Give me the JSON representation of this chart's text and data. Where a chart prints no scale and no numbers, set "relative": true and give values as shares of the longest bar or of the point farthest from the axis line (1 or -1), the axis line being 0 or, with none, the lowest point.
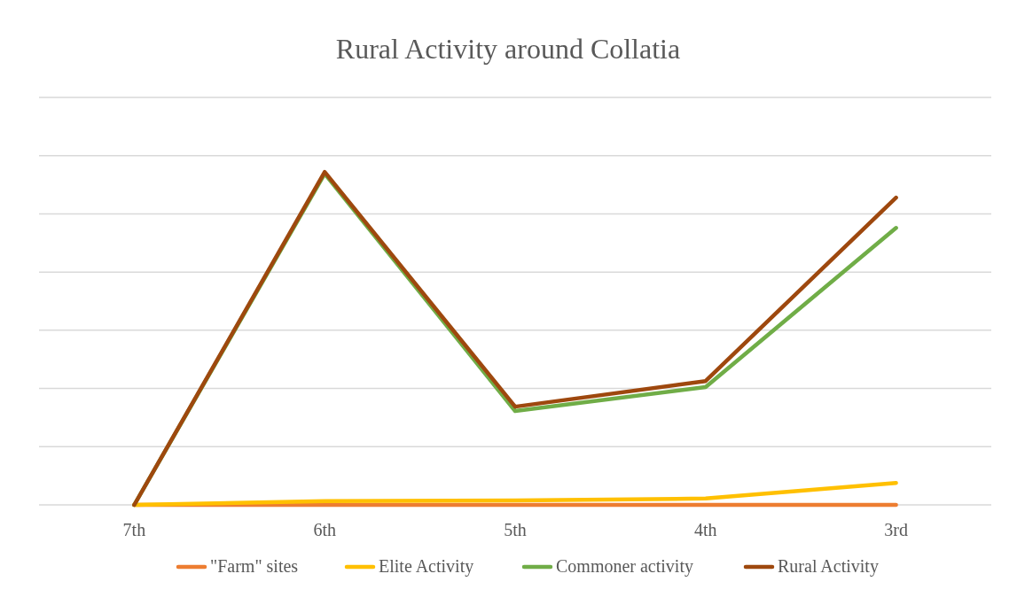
{
  "chart_data": {
    "type": "line",
    "title": "Rural Activity around Collatia",
    "categories": [
      "7th",
      "6th",
      "5th",
      "4th",
      "3rd"
    ],
    "relative": true,
    "grid": "y",
    "legend": "bottom",
    "marker": "none",
    "line_style": "solid",
    "series": [
      {
        "name": "\"Farm\" sites",
        "color": "#ed7d31",
        "values": [
          0,
          0,
          0,
          0,
          0
        ]
      },
      {
        "name": "Elite Activity",
        "color": "#ffc000",
        "values": [
          0,
          0.011,
          0.013,
          0.019,
          0.066
        ]
      },
      {
        "name": "Commoner activity",
        "color": "#70ad47",
        "values": [
          0,
          0.995,
          0.282,
          0.354,
          0.832
        ]
      },
      {
        "name": "Rural Activity",
        "color": "#9e480e",
        "values": [
          0,
          1,
          0.295,
          0.372,
          0.923
        ]
      }
    ]
  }
}
